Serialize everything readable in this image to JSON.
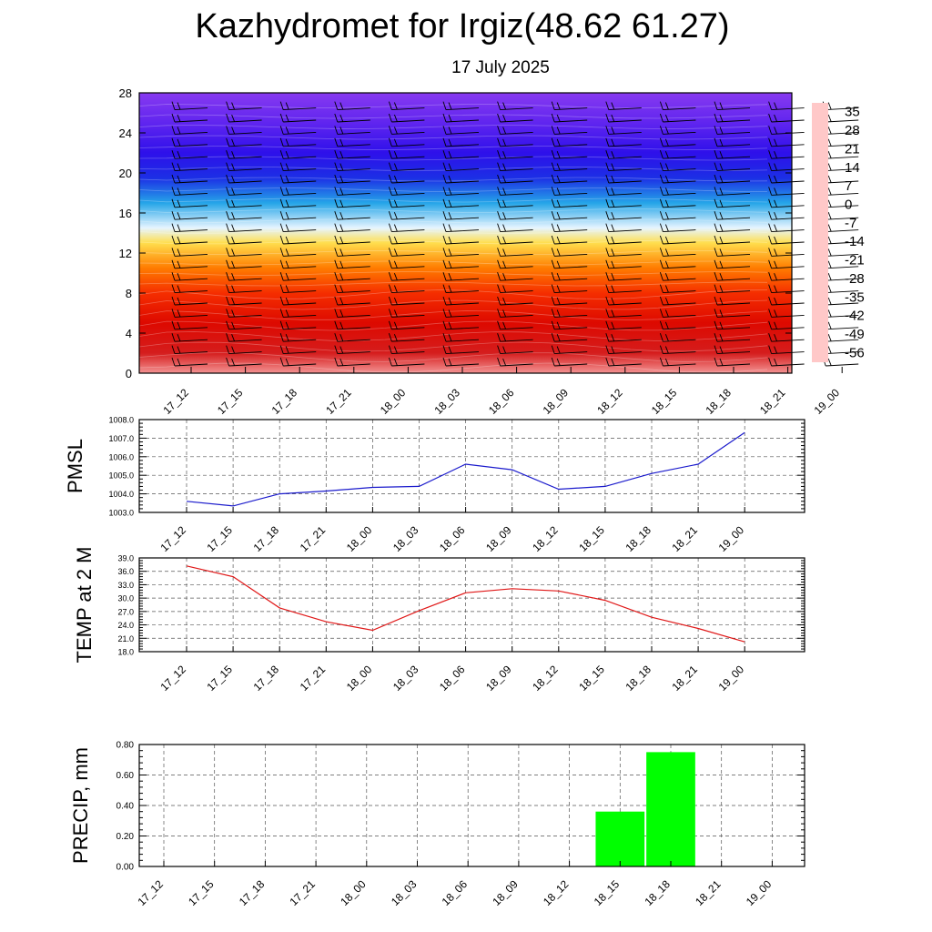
{
  "header": {
    "title": "Kazhydromet for Irgiz(48.62 61.27)",
    "subtitle": "17 July 2025"
  },
  "colors": {
    "pmsl_line": "#1a1acc",
    "temp_line": "#e01818",
    "precip_bar": "#00ff00",
    "axis": "#000000",
    "grid": "#555555"
  },
  "chart_data": [
    {
      "type": "heatmap",
      "title": "",
      "xlabel": "",
      "ylabel": "",
      "x": [
        "17_12",
        "17_15",
        "17_18",
        "17_21",
        "18_00",
        "18_03",
        "18_06",
        "18_09",
        "18_12",
        "18_15",
        "18_18",
        "18_21",
        "19_00"
      ],
      "yticks": [
        "0",
        "4",
        "8",
        "12",
        "16",
        "20",
        "24",
        "28"
      ],
      "ylim": [
        0,
        28
      ],
      "colorbar_labels": [
        "35",
        "28",
        "21",
        "14",
        "7",
        "0",
        "-7",
        "-14",
        "-21",
        "-28",
        "-35",
        "-42",
        "-49",
        "-56"
      ],
      "colorbar_range": [
        -60,
        38
      ],
      "colorbar_stops": [
        {
          "value": 38,
          "color": "#ffc8c8"
        },
        {
          "value": 33,
          "color": "#e24444"
        },
        {
          "value": 26,
          "color": "#cc0000"
        },
        {
          "value": 18,
          "color": "#ee1100"
        },
        {
          "value": 11,
          "color": "#ff5500"
        },
        {
          "value": 4,
          "color": "#ff8c00"
        },
        {
          "value": -3,
          "color": "#ffc400"
        },
        {
          "value": -8,
          "color": "#fff080"
        },
        {
          "value": -12,
          "color": "#e6f5ff"
        },
        {
          "value": -17,
          "color": "#7fd6f5"
        },
        {
          "value": -24,
          "color": "#25a5e8"
        },
        {
          "value": -33,
          "color": "#3355ee"
        },
        {
          "value": -42,
          "color": "#0a10dd"
        },
        {
          "value": -50,
          "color": "#3a10ee"
        },
        {
          "value": -60,
          "color": "#9a44f0"
        }
      ],
      "field_stops": [
        {
          "height": 0,
          "value": 36
        },
        {
          "height": 2,
          "value": 29
        },
        {
          "height": 5,
          "value": 22
        },
        {
          "height": 8,
          "value": 15
        },
        {
          "height": 10.5,
          "value": 6
        },
        {
          "height": 13,
          "value": -6
        },
        {
          "height": 14.5,
          "value": -12
        },
        {
          "height": 17,
          "value": -24
        },
        {
          "height": 19.5,
          "value": -38
        },
        {
          "height": 22,
          "value": -48
        },
        {
          "height": 25,
          "value": -54
        },
        {
          "height": 28,
          "value": -58
        }
      ]
    },
    {
      "type": "line",
      "title": "",
      "xlabel": "",
      "ylabel": "PMSL",
      "x": [
        "17_12",
        "17_15",
        "17_18",
        "17_21",
        "18_00",
        "18_03",
        "18_06",
        "18_09",
        "18_12",
        "18_15",
        "18_18",
        "18_21",
        "19_00"
      ],
      "yticks": [
        "1003.0",
        "1004.0",
        "1005.0",
        "1006.0",
        "1007.0",
        "1008.0"
      ],
      "ylim": [
        1003,
        1008
      ],
      "values": [
        1003.6,
        1003.35,
        1004.0,
        1004.15,
        1004.35,
        1004.4,
        1005.6,
        1005.3,
        1004.25,
        1004.4,
        1005.1,
        1005.6,
        1007.3
      ]
    },
    {
      "type": "line",
      "title": "",
      "xlabel": "",
      "ylabel": "TEMP at 2 M",
      "x": [
        "17_12",
        "17_15",
        "17_18",
        "17_21",
        "18_00",
        "18_03",
        "18_06",
        "18_09",
        "18_12",
        "18_15",
        "18_18",
        "18_21",
        "19_00"
      ],
      "yticks": [
        "18.0",
        "21.0",
        "24.0",
        "27.0",
        "30.0",
        "33.0",
        "36.0",
        "39.0"
      ],
      "ylim": [
        18,
        39
      ],
      "values": [
        37.2,
        34.8,
        27.8,
        24.7,
        22.8,
        27.2,
        31.2,
        32.1,
        31.6,
        29.5,
        25.7,
        23.2,
        20.2
      ]
    },
    {
      "type": "bar",
      "title": "",
      "xlabel": "",
      "ylabel": "PRECIP, mm",
      "x": [
        "17_12",
        "17_15",
        "17_18",
        "17_21",
        "18_00",
        "18_03",
        "18_06",
        "18_09",
        "18_12",
        "18_15",
        "18_18",
        "18_21",
        "19_00"
      ],
      "yticks": [
        "0.00",
        "0.20",
        "0.40",
        "0.60",
        "0.80"
      ],
      "ylim": [
        0,
        0.8
      ],
      "values": [
        0,
        0,
        0,
        0,
        0,
        0,
        0,
        0,
        0,
        0.36,
        0.75,
        0,
        0
      ]
    }
  ]
}
